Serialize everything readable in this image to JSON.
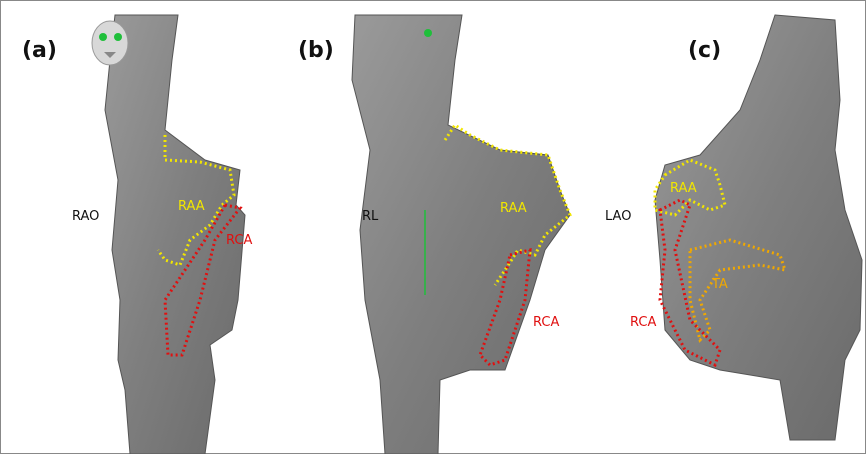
{
  "panels": [
    {
      "label": "(a)",
      "view": "RAO",
      "annotations": [
        "RAA",
        "RCA"
      ]
    },
    {
      "label": "(b)",
      "view": "RL",
      "annotations": [
        "RAA",
        "RCA"
      ]
    },
    {
      "label": "(c)",
      "view": "LAO",
      "annotations": [
        "RAA",
        "TA",
        "RCA"
      ]
    }
  ]
}
